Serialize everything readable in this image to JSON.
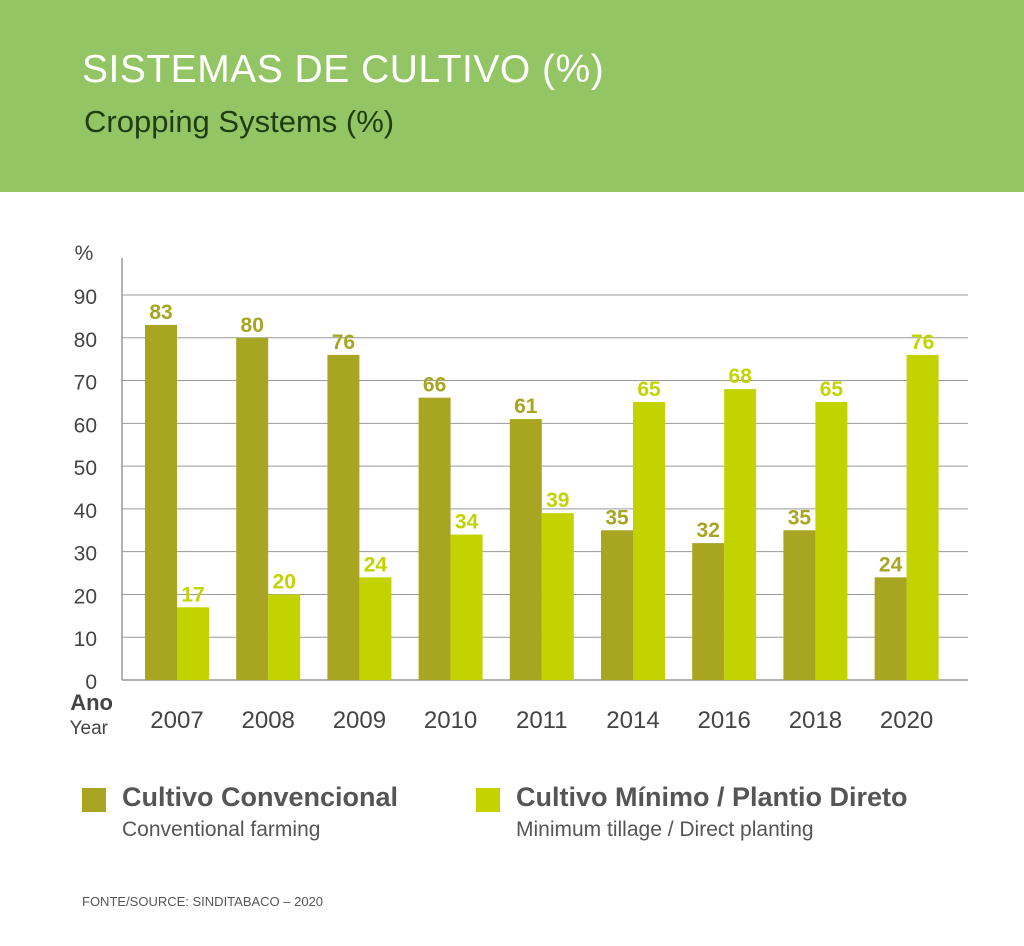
{
  "header": {
    "title": "SISTEMAS DE CULTIVO (%)",
    "subtitle": "Cropping Systems (%)",
    "background_color": "#93c565"
  },
  "chart_data": {
    "type": "bar",
    "ylabel": "%",
    "xlabel": "Ano",
    "xlabel_sub": "Year",
    "ylim": [
      0,
      90
    ],
    "yticks": [
      0,
      10,
      20,
      30,
      40,
      50,
      60,
      70,
      80,
      90
    ],
    "grid": true,
    "legend_position": "bottom",
    "categories": [
      "2007",
      "2008",
      "2009",
      "2010",
      "2011",
      "2014",
      "2016",
      "2018",
      "2020"
    ],
    "series": [
      {
        "name": "Cultivo Convencional",
        "name_sub": "Conventional farming",
        "color": "#a8a523",
        "values": [
          83,
          80,
          76,
          66,
          61,
          35,
          32,
          35,
          24
        ]
      },
      {
        "name": "Cultivo Mínimo / Plantio Direto",
        "name_sub": "Minimum tillage / Direct planting",
        "color": "#c2d300",
        "values": [
          17,
          20,
          24,
          34,
          39,
          65,
          68,
          65,
          76
        ]
      }
    ]
  },
  "source": "FONTE/SOURCE: SINDITABACO – 2020"
}
